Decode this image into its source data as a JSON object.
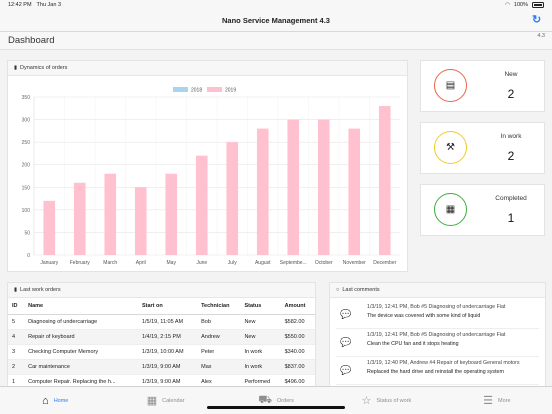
{
  "status_bar": {
    "time": "12:42 PM",
    "date": "Thu Jan 3",
    "battery": "100%"
  },
  "app": {
    "title": "Nano Service Management 4.3"
  },
  "page": {
    "title": "Dashboard",
    "version": "4.3"
  },
  "chart_panel": {
    "title": "Dynamics of orders"
  },
  "chart_data": {
    "type": "bar",
    "categories": [
      "January",
      "February",
      "March",
      "April",
      "May",
      "June",
      "July",
      "August",
      "Septembe...",
      "October",
      "November",
      "December"
    ],
    "series": [
      {
        "name": "2018",
        "color": "#a9d4ee",
        "values": [
          0,
          0,
          0,
          0,
          0,
          0,
          0,
          0,
          0,
          0,
          0,
          0
        ]
      },
      {
        "name": "2019",
        "color": "#ffc0cf",
        "values": [
          120,
          160,
          180,
          150,
          180,
          220,
          250,
          280,
          300,
          300,
          280,
          330
        ]
      }
    ],
    "ylim": [
      0,
      350
    ],
    "yticks": [
      0,
      50,
      100,
      150,
      200,
      250,
      300,
      350
    ],
    "grid": true,
    "legend": "top"
  },
  "stats": [
    {
      "label": "New",
      "value": "2",
      "color": "#e8654a",
      "icon": "document-icon"
    },
    {
      "label": "In work",
      "value": "2",
      "color": "#f2cd20",
      "icon": "hammer-icon"
    },
    {
      "label": "Completed",
      "value": "1",
      "color": "#3cae3c",
      "icon": "register-icon"
    }
  ],
  "orders": {
    "title": "Last work orders",
    "columns": [
      "ID",
      "Name",
      "Start on",
      "Technician",
      "Status",
      "Amount"
    ],
    "rows": [
      [
        "5",
        "Diagnosing of undercarriage",
        "1/5/19, 11:05 AM",
        "Bob",
        "New",
        "$582.00"
      ],
      [
        "4",
        "Repair of keyboard",
        "1/4/19, 2:15 PM",
        "Andrew",
        "New",
        "$550.00"
      ],
      [
        "3",
        "Checking Computer Memory",
        "1/3/19, 10:00 AM",
        "Peter",
        "In work",
        "$340.00"
      ],
      [
        "2",
        "Car maintenance",
        "1/3/19, 9:00 AM",
        "Max",
        "In work",
        "$837.00"
      ],
      [
        "1",
        "Computer Repair. Replacing the h...",
        "1/3/19, 9:00 AM",
        "Alex",
        "Performed",
        "$496.00"
      ]
    ]
  },
  "comments": {
    "title": "Last comments",
    "items": [
      {
        "meta": "1/3/19, 12:41 PM, Bob #5 Diagnosing of undercarriage Fiat",
        "body": "The device was covered with some kind of liquid"
      },
      {
        "meta": "1/3/19, 12:41 PM, Bob #5 Diagnosing of undercarriage Fiat",
        "body": "Clean the CPU fan and it stops heating"
      },
      {
        "meta": "1/3/19, 12:40 PM, Andrew #4 Repair of keyboard General motors",
        "body": "Replaced the hard drive and reinstall the operating system"
      }
    ]
  },
  "tabs": [
    {
      "label": "Home",
      "icon": "home-icon"
    },
    {
      "label": "Calendar",
      "icon": "calendar-icon"
    },
    {
      "label": "Orders",
      "icon": "truck-icon"
    },
    {
      "label": "Status of work",
      "icon": "star-icon"
    },
    {
      "label": "More",
      "icon": "menu-icon"
    }
  ]
}
